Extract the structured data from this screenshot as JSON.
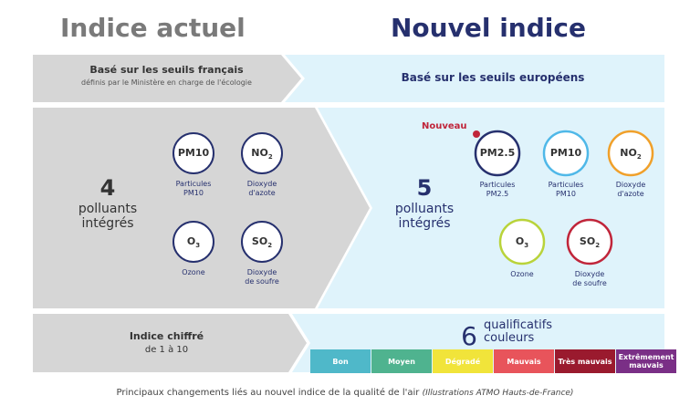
{
  "header": {
    "left_title": "Indice actuel",
    "right_title": "Nouvel indice"
  },
  "thresholds": {
    "left_line1": "Basé sur les seuils français",
    "left_line2": "définis par le Ministère en charge de l'écologie",
    "right": "Basé sur les seuils européens"
  },
  "current": {
    "count": "4",
    "count_line1": "polluants",
    "count_line2": "intégrés",
    "pollutants": [
      {
        "symbol": "PM10",
        "sub": "",
        "caption1": "Particules",
        "caption2": "PM10",
        "color": "#26306e"
      },
      {
        "symbol": "NO",
        "sub": "2",
        "caption1": "Dioxyde",
        "caption2": "d'azote",
        "color": "#26306e"
      },
      {
        "symbol": "O",
        "sub": "3",
        "caption1": "Ozone",
        "caption2": "",
        "color": "#26306e"
      },
      {
        "symbol": "SO",
        "sub": "2",
        "caption1": "Dioxyde",
        "caption2": "de soufre",
        "color": "#26306e"
      }
    ]
  },
  "new": {
    "badge": "Nouveau",
    "count": "5",
    "count_line1": "polluants",
    "count_line2": "intégrés",
    "pollutants": [
      {
        "symbol": "PM2.5",
        "sub": "",
        "caption1": "Particules",
        "caption2": "PM2.5",
        "color": "#26306e"
      },
      {
        "symbol": "PM10",
        "sub": "",
        "caption1": "Particules",
        "caption2": "PM10",
        "color": "#4fb8e8"
      },
      {
        "symbol": "NO",
        "sub": "2",
        "caption1": "Dioxyde",
        "caption2": "d'azote",
        "color": "#f0a02a"
      },
      {
        "symbol": "O",
        "sub": "3",
        "caption1": "Ozone",
        "caption2": "",
        "color": "#b9d33a"
      },
      {
        "symbol": "SO",
        "sub": "2",
        "caption1": "Dioxyde",
        "caption2": "de soufre",
        "color": "#c0253a"
      }
    ]
  },
  "index": {
    "left_line1": "Indice chiffré",
    "left_line2": "de 1 à 10",
    "qual_count": "6",
    "qual_line1": "qualificatifs",
    "qual_line2": "couleurs",
    "levels": [
      {
        "label": "Bon",
        "color": "#4fb8c9"
      },
      {
        "label": "Moyen",
        "color": "#4fb38f"
      },
      {
        "label": "Dégradé",
        "color": "#f1e43a"
      },
      {
        "label": "Mauvais",
        "color": "#e8545b"
      },
      {
        "label": "Très mauvais",
        "color": "#9a1a2e"
      },
      {
        "label": "Extrêmement mauvais",
        "color": "#7a2f86"
      }
    ]
  },
  "caption": {
    "main": "Principaux changements liés au nouvel indice de la qualité de l'air",
    "note": "(Illustrations ATMO Hauts-de-France)"
  }
}
